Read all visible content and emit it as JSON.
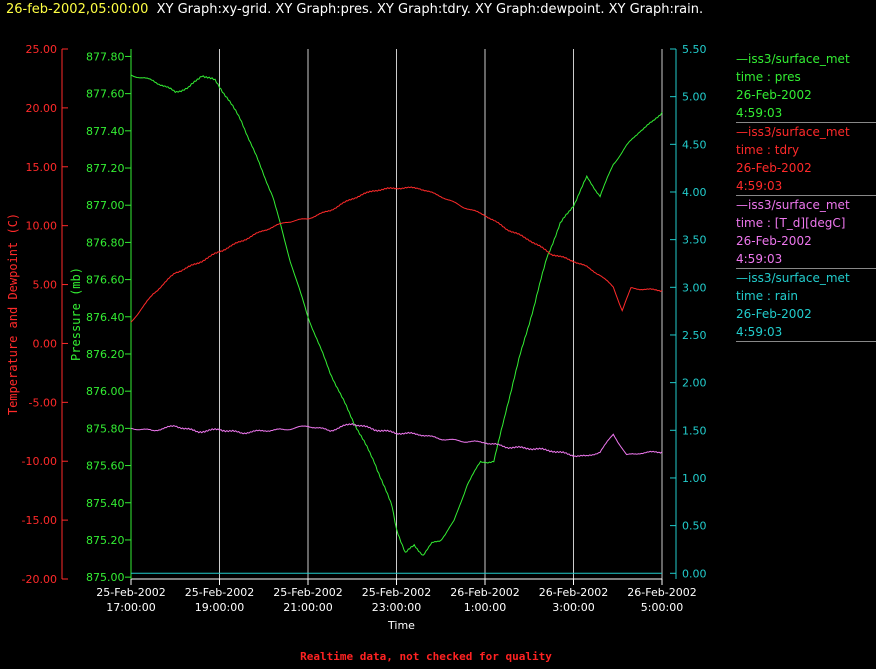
{
  "title": {
    "date": "26-feb-2002,05:00:00",
    "description": "XY Graph:xy-grid. XY Graph:pres. XY Graph:tdry. XY Graph:dewpoint. XY Graph:rain."
  },
  "footer": "Realtime data, not checked for quality",
  "colors": {
    "temperature": "#ff2a2a",
    "pressure": "#33ee33",
    "dewpoint": "#ee77ee",
    "rain": "#22cccc",
    "grid": "#cccccc"
  },
  "legend": [
    {
      "station": "—iss3/surface_met",
      "field": "time : pres",
      "date": "26-Feb-2002",
      "time": "4:59:03",
      "color": "#33ee33"
    },
    {
      "station": "—iss3/surface_met",
      "field": "time : tdry",
      "date": "26-Feb-2002",
      "time": "4:59:03",
      "color": "#ff2a2a"
    },
    {
      "station": "—iss3/surface_met",
      "field": "time : [T_d][degC]",
      "date": "26-Feb-2002",
      "time": "4:59:03",
      "color": "#ee77ee"
    },
    {
      "station": "—iss3/surface_met",
      "field": "time : rain",
      "date": "26-Feb-2002",
      "time": "4:59:03",
      "color": "#22cccc"
    }
  ],
  "chart_data": {
    "type": "line",
    "xlabel": "Time",
    "x_ticks": [
      {
        "date": "25-Feb-2002",
        "time": "17:00:00",
        "hour": 17
      },
      {
        "date": "25-Feb-2002",
        "time": "19:00:00",
        "hour": 19
      },
      {
        "date": "25-Feb-2002",
        "time": "21:00:00",
        "hour": 21
      },
      {
        "date": "25-Feb-2002",
        "time": "23:00:00",
        "hour": 23
      },
      {
        "date": "26-Feb-2002",
        "time": "1:00:00",
        "hour": 25
      },
      {
        "date": "26-Feb-2002",
        "time": "3:00:00",
        "hour": 27
      },
      {
        "date": "26-Feb-2002",
        "time": "5:00:00",
        "hour": 29
      }
    ],
    "xlim": [
      17,
      29
    ],
    "grid": true,
    "axes": {
      "temperature": {
        "label": "Temperature and Dewpoint (C)",
        "ylim": [
          -20,
          25
        ],
        "ticks": [
          "25.00",
          "20.00",
          "15.00",
          "10.00",
          "5.00",
          "0.00",
          "-5.00",
          "-10.00",
          "-15.00",
          "-20.00"
        ]
      },
      "pressure": {
        "label": "Pressure (mb)",
        "ylim": [
          874.99,
          877.84
        ],
        "ticks": [
          "877.80",
          "877.60",
          "877.40",
          "877.20",
          "877.00",
          "876.80",
          "876.60",
          "876.40",
          "876.20",
          "876.00",
          "875.80",
          "875.60",
          "875.40",
          "875.20",
          "875.00"
        ]
      },
      "rain": {
        "label": "",
        "ylim": [
          -0.06,
          5.5
        ],
        "ticks": [
          "5.50",
          "5.00",
          "4.50",
          "4.00",
          "3.50",
          "3.00",
          "2.50",
          "2.00",
          "1.50",
          "1.00",
          "0.50",
          "0.00"
        ]
      }
    },
    "series": [
      {
        "name": "time : pres",
        "axis": "pressure",
        "x": [
          17.0,
          17.5,
          18.0,
          18.3,
          18.6,
          18.9,
          19.2,
          19.5,
          19.8,
          20.2,
          20.6,
          21.0,
          21.5,
          22.0,
          22.5,
          22.9,
          23.0,
          23.2,
          23.4,
          23.6,
          23.8,
          24.0,
          24.3,
          24.6,
          24.9,
          25.2,
          25.5,
          25.8,
          26.1,
          26.4,
          26.7,
          27.0,
          27.3,
          27.6,
          27.9,
          28.2,
          28.5,
          28.8,
          29.0
        ],
        "y": [
          877.7,
          877.67,
          877.61,
          877.63,
          877.7,
          877.67,
          877.57,
          877.45,
          877.28,
          877.05,
          876.7,
          876.4,
          876.1,
          875.85,
          875.62,
          875.38,
          875.26,
          875.13,
          875.17,
          875.12,
          875.18,
          875.2,
          875.3,
          875.5,
          875.62,
          875.62,
          875.92,
          876.2,
          876.45,
          876.72,
          876.9,
          877.0,
          877.15,
          877.05,
          877.22,
          877.32,
          877.4,
          877.45,
          877.5
        ]
      },
      {
        "name": "time : tdry",
        "axis": "temperature",
        "x": [
          17.0,
          17.5,
          18.0,
          18.5,
          19.0,
          19.5,
          20.0,
          20.5,
          21.0,
          21.5,
          22.0,
          22.5,
          23.0,
          23.5,
          24.0,
          24.5,
          25.0,
          25.5,
          26.0,
          26.5,
          27.0,
          27.3,
          27.6,
          27.9,
          28.1,
          28.3,
          28.6,
          29.0
        ],
        "y": [
          1.8,
          4.2,
          6.0,
          6.8,
          7.8,
          8.7,
          9.6,
          10.3,
          10.6,
          11.3,
          12.3,
          13.0,
          13.2,
          13.2,
          12.5,
          11.6,
          10.9,
          9.7,
          8.8,
          7.6,
          7.0,
          6.5,
          5.8,
          4.8,
          2.8,
          4.7,
          4.6,
          4.5
        ]
      },
      {
        "name": "time : [T_d][degC]",
        "axis": "temperature",
        "x": [
          17.0,
          17.5,
          18.0,
          18.5,
          19.0,
          19.5,
          20.0,
          20.5,
          21.0,
          21.5,
          22.0,
          22.5,
          23.0,
          23.5,
          24.0,
          24.5,
          25.0,
          25.5,
          26.0,
          26.5,
          27.0,
          27.3,
          27.6,
          27.9,
          28.2,
          28.5,
          29.0
        ],
        "y": [
          -7.2,
          -7.4,
          -7.0,
          -7.5,
          -7.3,
          -7.6,
          -7.4,
          -7.3,
          -7.0,
          -7.4,
          -6.8,
          -7.3,
          -7.6,
          -7.7,
          -8.1,
          -8.3,
          -8.4,
          -8.8,
          -8.9,
          -9.1,
          -9.5,
          -9.6,
          -9.2,
          -7.7,
          -9.5,
          -9.3,
          -9.2
        ]
      },
      {
        "name": "time : rain",
        "axis": "rain",
        "x": [
          17.0,
          29.0
        ],
        "y": [
          0.0,
          0.0
        ]
      }
    ]
  }
}
